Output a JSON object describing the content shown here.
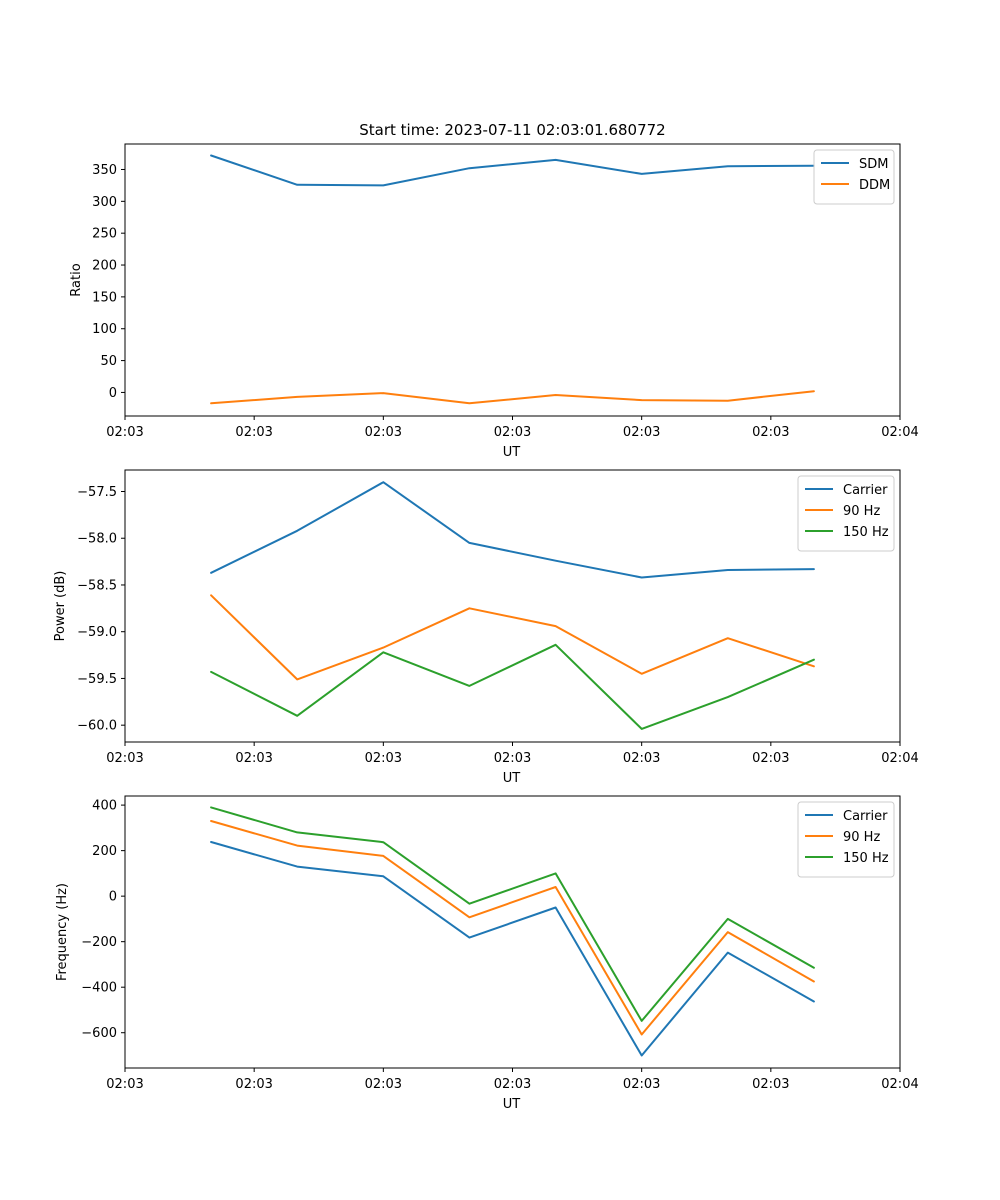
{
  "chart_data": [
    {
      "type": "line",
      "title": "Start time: 2023-07-11 02:03:01.680772",
      "xlabel": "UT",
      "ylabel": "Ratio",
      "x": [
        1,
        2,
        3,
        4,
        5,
        6,
        7,
        8
      ],
      "xlim": [
        0,
        9
      ],
      "x_ticks": [
        0,
        1.5,
        3,
        4.5,
        6,
        7.5,
        9
      ],
      "x_tick_labels": [
        "02:03",
        "02:03",
        "02:03",
        "02:03",
        "02:03",
        "02:03",
        "02:04"
      ],
      "ylim": [
        -37,
        390
      ],
      "y_ticks": [
        0,
        50,
        100,
        150,
        200,
        250,
        300,
        350
      ],
      "y_tick_labels": [
        "0",
        "50",
        "100",
        "150",
        "200",
        "250",
        "300",
        "350"
      ],
      "legend_position": "top-right",
      "series": [
        {
          "name": "SDM",
          "color": "#1f77b4",
          "values": [
            372,
            326,
            325,
            352,
            365,
            343,
            355,
            356
          ]
        },
        {
          "name": "DDM",
          "color": "#ff7f0e",
          "values": [
            -17,
            -7,
            -1,
            -17,
            -4,
            -12,
            -13,
            2
          ]
        }
      ]
    },
    {
      "type": "line",
      "title": "",
      "xlabel": "UT",
      "ylabel": "Power (dB)",
      "x": [
        1,
        2,
        3,
        4,
        5,
        6,
        7,
        8
      ],
      "xlim": [
        0,
        9
      ],
      "x_ticks": [
        0,
        1.5,
        3,
        4.5,
        6,
        7.5,
        9
      ],
      "x_tick_labels": [
        "02:03",
        "02:03",
        "02:03",
        "02:03",
        "02:03",
        "02:03",
        "02:04"
      ],
      "ylim": [
        -60.18,
        -57.27
      ],
      "y_ticks": [
        -60.0,
        -59.5,
        -59.0,
        -58.5,
        -58.0,
        -57.5
      ],
      "y_tick_labels": [
        "−60.0",
        "−59.5",
        "−59.0",
        "−58.5",
        "−58.0",
        "−57.5"
      ],
      "legend_position": "top-right",
      "series": [
        {
          "name": "Carrier",
          "color": "#1f77b4",
          "values": [
            -58.37,
            -57.92,
            -57.4,
            -58.05,
            -58.24,
            -58.42,
            -58.34,
            -58.33
          ]
        },
        {
          "name": "90 Hz",
          "color": "#ff7f0e",
          "values": [
            -58.61,
            -59.51,
            -59.17,
            -58.75,
            -58.94,
            -59.45,
            -59.07,
            -59.37
          ]
        },
        {
          "name": "150 Hz",
          "color": "#2ca02c",
          "values": [
            -59.43,
            -59.9,
            -59.22,
            -59.58,
            -59.14,
            -60.04,
            -59.7,
            -59.3
          ]
        }
      ]
    },
    {
      "type": "line",
      "title": "",
      "xlabel": "UT",
      "ylabel": "Frequency (Hz)",
      "x": [
        1,
        2,
        3,
        4,
        5,
        6,
        7,
        8
      ],
      "xlim": [
        0,
        9
      ],
      "x_ticks": [
        0,
        1.5,
        3,
        4.5,
        6,
        7.5,
        9
      ],
      "x_tick_labels": [
        "02:03",
        "02:03",
        "02:03",
        "02:03",
        "02:03",
        "02:03",
        "02:04"
      ],
      "ylim": [
        -755,
        440
      ],
      "y_ticks": [
        -600,
        -400,
        -200,
        0,
        200,
        400
      ],
      "y_tick_labels": [
        "−600",
        "−400",
        "−200",
        "0",
        "200",
        "400"
      ],
      "legend_position": "top-right",
      "series": [
        {
          "name": "Carrier",
          "color": "#1f77b4",
          "values": [
            238,
            130,
            87,
            -182,
            -50,
            -700,
            -248,
            -463
          ]
        },
        {
          "name": "90 Hz",
          "color": "#ff7f0e",
          "values": [
            330,
            222,
            177,
            -93,
            40,
            -608,
            -158,
            -375
          ]
        },
        {
          "name": "150 Hz",
          "color": "#2ca02c",
          "values": [
            390,
            280,
            237,
            -33,
            100,
            -548,
            -100,
            -315
          ]
        }
      ]
    }
  ]
}
